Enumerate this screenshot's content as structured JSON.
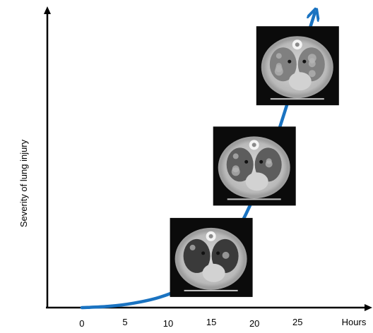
{
  "chart_data": {
    "type": "line",
    "title": "",
    "xlabel": "Hours",
    "ylabel": "Severity of lung injury",
    "x_ticks": [
      0,
      5,
      10,
      15,
      20,
      25
    ],
    "xlim": [
      -4,
      33
    ],
    "ylim": [
      0,
      100
    ],
    "grid": false,
    "legend": "none",
    "series": [
      {
        "x": [
          0,
          3,
          6,
          9,
          12,
          14,
          16,
          18,
          20,
          22,
          24,
          25.5,
          27
        ],
        "y": [
          0,
          0.4,
          1.5,
          3.5,
          7,
          11,
          17,
          26,
          38,
          53,
          71,
          86,
          100
        ]
      }
    ],
    "ct_scan_insets": [
      {
        "hour": 15,
        "severity": 17
      },
      {
        "hour": 20,
        "severity": 48
      },
      {
        "hour": 25,
        "severity": 82
      }
    ],
    "colors": {
      "curve": "#1a73c1",
      "axes": "#000000"
    }
  }
}
